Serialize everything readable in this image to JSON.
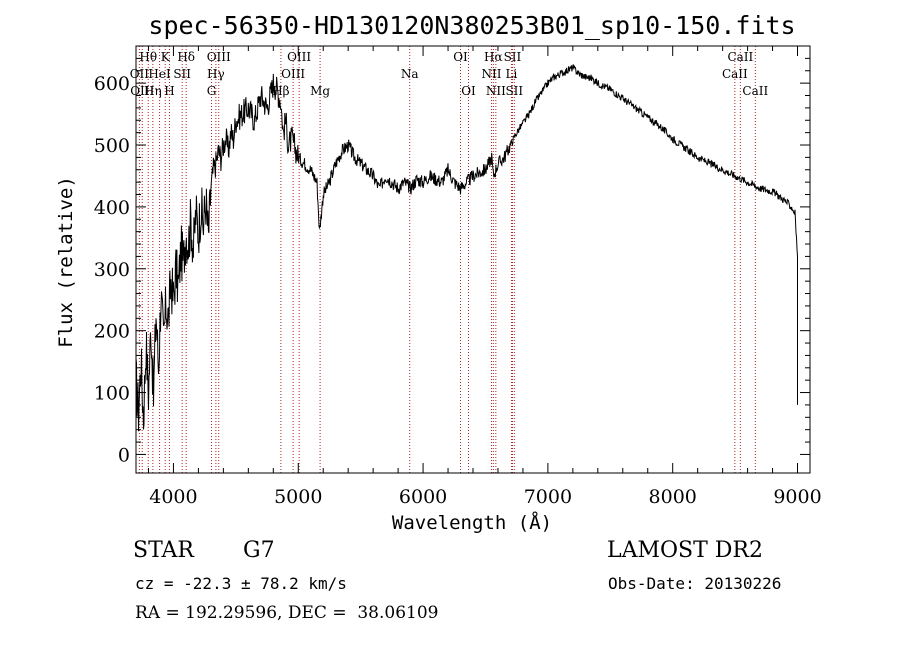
{
  "chart_data": {
    "type": "line",
    "title": "spec-56350-HD130120N380253B01_sp10-150.fits",
    "xlabel": "Wavelength (Å)",
    "ylabel": "Flux (relative)",
    "xlim": [
      3700,
      9100
    ],
    "ylim": [
      -30,
      660
    ],
    "xticks": [
      4000,
      5000,
      6000,
      7000,
      8000,
      9000
    ],
    "yticks": [
      0,
      100,
      200,
      300,
      400,
      500,
      600
    ],
    "grid": false,
    "series": [
      {
        "x": [
          3700,
          3720,
          3740,
          3760,
          3780,
          3800,
          3820,
          3840,
          3860,
          3880,
          3900,
          3920,
          3940,
          3960,
          3980,
          4000,
          4020,
          4040,
          4060,
          4080,
          4100,
          4120,
          4140,
          4160,
          4180,
          4200,
          4220,
          4240,
          4260,
          4280,
          4300,
          4320,
          4340,
          4360,
          4380,
          4400,
          4420,
          4440,
          4460,
          4480,
          4500,
          4550,
          4600,
          4650,
          4700,
          4750,
          4800,
          4830,
          4860,
          4880,
          4900,
          4920,
          4950,
          5000,
          5050,
          5100,
          5150,
          5170,
          5200,
          5250,
          5300,
          5350,
          5400,
          5450,
          5500,
          5550,
          5600,
          5650,
          5700,
          5750,
          5800,
          5850,
          5900,
          5950,
          6000,
          6050,
          6100,
          6150,
          6200,
          6250,
          6300,
          6350,
          6400,
          6450,
          6500,
          6550,
          6563,
          6600,
          6650,
          6700,
          6750,
          6800,
          6850,
          6900,
          6950,
          7000,
          7050,
          7100,
          7150,
          7200,
          7250,
          7300,
          7350,
          7400,
          7500,
          7600,
          7700,
          7800,
          7900,
          8000,
          8100,
          8200,
          8300,
          8400,
          8500,
          8600,
          8700,
          8800,
          8900,
          8950,
          8980,
          9000
        ],
        "values": [
          120,
          70,
          150,
          60,
          180,
          100,
          210,
          90,
          230,
          140,
          260,
          180,
          240,
          220,
          280,
          250,
          300,
          270,
          330,
          310,
          360,
          340,
          380,
          330,
          390,
          360,
          400,
          370,
          410,
          350,
          430,
          460,
          470,
          490,
          480,
          500,
          510,
          490,
          520,
          510,
          540,
          550,
          560,
          540,
          580,
          560,
          600,
          590,
          570,
          520,
          540,
          500,
          510,
          480,
          470,
          460,
          440,
          360,
          420,
          440,
          470,
          490,
          500,
          480,
          470,
          460,
          450,
          430,
          450,
          440,
          430,
          440,
          430,
          445,
          440,
          450,
          445,
          440,
          460,
          440,
          430,
          440,
          450,
          455,
          460,
          480,
          450,
          470,
          480,
          500,
          520,
          535,
          550,
          570,
          585,
          600,
          610,
          615,
          620,
          625,
          615,
          610,
          608,
          600,
          590,
          575,
          560,
          545,
          530,
          510,
          495,
          480,
          470,
          460,
          450,
          440,
          430,
          425,
          410,
          400,
          390,
          320
        ]
      }
    ]
  },
  "spectral_lines": [
    {
      "name": "Hθ",
      "wl": 3798,
      "row": 0
    },
    {
      "name": "OII",
      "wl": 3727,
      "row": 1
    },
    {
      "name": "OIII",
      "wl": 3750,
      "row": 2
    },
    {
      "name": "Hη",
      "wl": 3835,
      "row": 2
    },
    {
      "name": "K",
      "wl": 3934,
      "row": 0
    },
    {
      "name": "HeI",
      "wl": 3889,
      "row": 1
    },
    {
      "name": "H",
      "wl": 3968,
      "row": 2
    },
    {
      "name": "SII",
      "wl": 4070,
      "row": 1
    },
    {
      "name": "Hδ",
      "wl": 4102,
      "row": 0
    },
    {
      "name": "OIII",
      "wl": 4363,
      "row": 0
    },
    {
      "name": "Hγ",
      "wl": 4340,
      "row": 1
    },
    {
      "name": "G",
      "wl": 4305,
      "row": 2
    },
    {
      "name": "OIII",
      "wl": 5007,
      "row": 0
    },
    {
      "name": "OIII",
      "wl": 4959,
      "row": 1
    },
    {
      "name": "Hβ",
      "wl": 4861,
      "row": 2
    },
    {
      "name": "Mg",
      "wl": 5175,
      "row": 2
    },
    {
      "name": "Na",
      "wl": 5893,
      "row": 1
    },
    {
      "name": "OI",
      "wl": 6300,
      "row": 0
    },
    {
      "name": "OI",
      "wl": 6364,
      "row": 2
    },
    {
      "name": "Hα",
      "wl": 6563,
      "row": 0
    },
    {
      "name": "SII",
      "wl": 6716,
      "row": 0
    },
    {
      "name": "NII",
      "wl": 6548,
      "row": 1
    },
    {
      "name": "Li",
      "wl": 6708,
      "row": 1
    },
    {
      "name": "NII",
      "wl": 6583,
      "row": 2
    },
    {
      "name": "SII",
      "wl": 6731,
      "row": 2
    },
    {
      "name": "CaII",
      "wl": 8542,
      "row": 0
    },
    {
      "name": "CaII",
      "wl": 8498,
      "row": 1
    },
    {
      "name": "CaII",
      "wl": 8662,
      "row": 2
    }
  ],
  "info": {
    "class": "STAR",
    "subclass": "G7",
    "survey": "LAMOST DR2",
    "cz": "cz = -22.3 ± 78.2 km/s",
    "obs_date": "Obs-Date: 20130226",
    "coords": "RA = 192.29596, DEC =  38.06109"
  }
}
